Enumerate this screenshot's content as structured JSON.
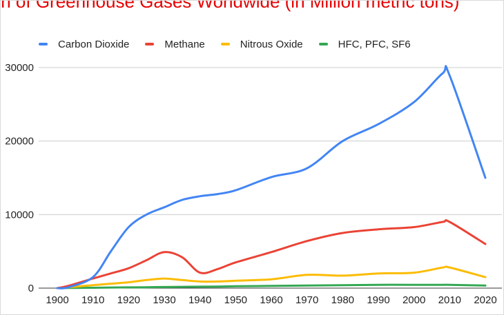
{
  "chart_data": {
    "type": "line",
    "title": "ssion of Greenhouse Gases Worldwide (in Million metric tons)",
    "xlabel": "",
    "ylabel": "",
    "x": [
      1900,
      1903,
      1910,
      1915,
      1920,
      1925,
      1930,
      1935,
      1940,
      1945,
      1950,
      1960,
      1970,
      1980,
      1990,
      2000,
      2008,
      2010,
      2020
    ],
    "xticks": [
      "1900",
      "1910",
      "1920",
      "1930",
      "1940",
      "1950",
      "1960",
      "1970",
      "1980",
      "1990",
      "2000",
      "2010",
      "2020"
    ],
    "yticks": [
      "0",
      "10000",
      "20000",
      "30000"
    ],
    "xlim": [
      1900,
      2020
    ],
    "ylim": [
      0,
      30000
    ],
    "grid": true,
    "legend": "top",
    "series": [
      {
        "name": "Carbon Dioxide",
        "color": "#4285f4",
        "values": [
          0,
          100,
          1500,
          5000,
          8300,
          10000,
          11000,
          12000,
          12500,
          12800,
          13300,
          15100,
          16300,
          20000,
          22300,
          25300,
          29200,
          28900,
          15000
        ]
      },
      {
        "name": "Methane",
        "color": "#ea4335",
        "values": [
          0,
          300,
          1300,
          2000,
          2700,
          3800,
          4900,
          4200,
          2100,
          2600,
          3500,
          4900,
          6400,
          7500,
          8000,
          8300,
          9000,
          9000,
          6000
        ]
      },
      {
        "name": "Nitrous Oxide",
        "color": "#fbbc04",
        "values": [
          0,
          100,
          400,
          600,
          800,
          1100,
          1300,
          1100,
          900,
          900,
          1000,
          1200,
          1800,
          1700,
          2000,
          2100,
          2800,
          2800,
          1500
        ]
      },
      {
        "name": "HFC, PFC, SF6",
        "color": "#34a853",
        "values": [
          0,
          20,
          50,
          80,
          100,
          120,
          150,
          180,
          200,
          220,
          250,
          300,
          350,
          400,
          450,
          450,
          450,
          450,
          350
        ]
      }
    ]
  }
}
